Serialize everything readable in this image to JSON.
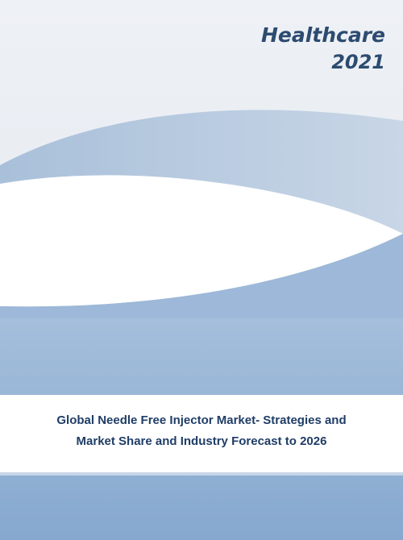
{
  "header": {
    "category": "Healthcare",
    "year": "2021"
  },
  "title": {
    "lines": [
      "Global Needle Free Injector Market- Strategies and",
      "Market Share and Industry Forecast to 2026"
    ]
  }
}
